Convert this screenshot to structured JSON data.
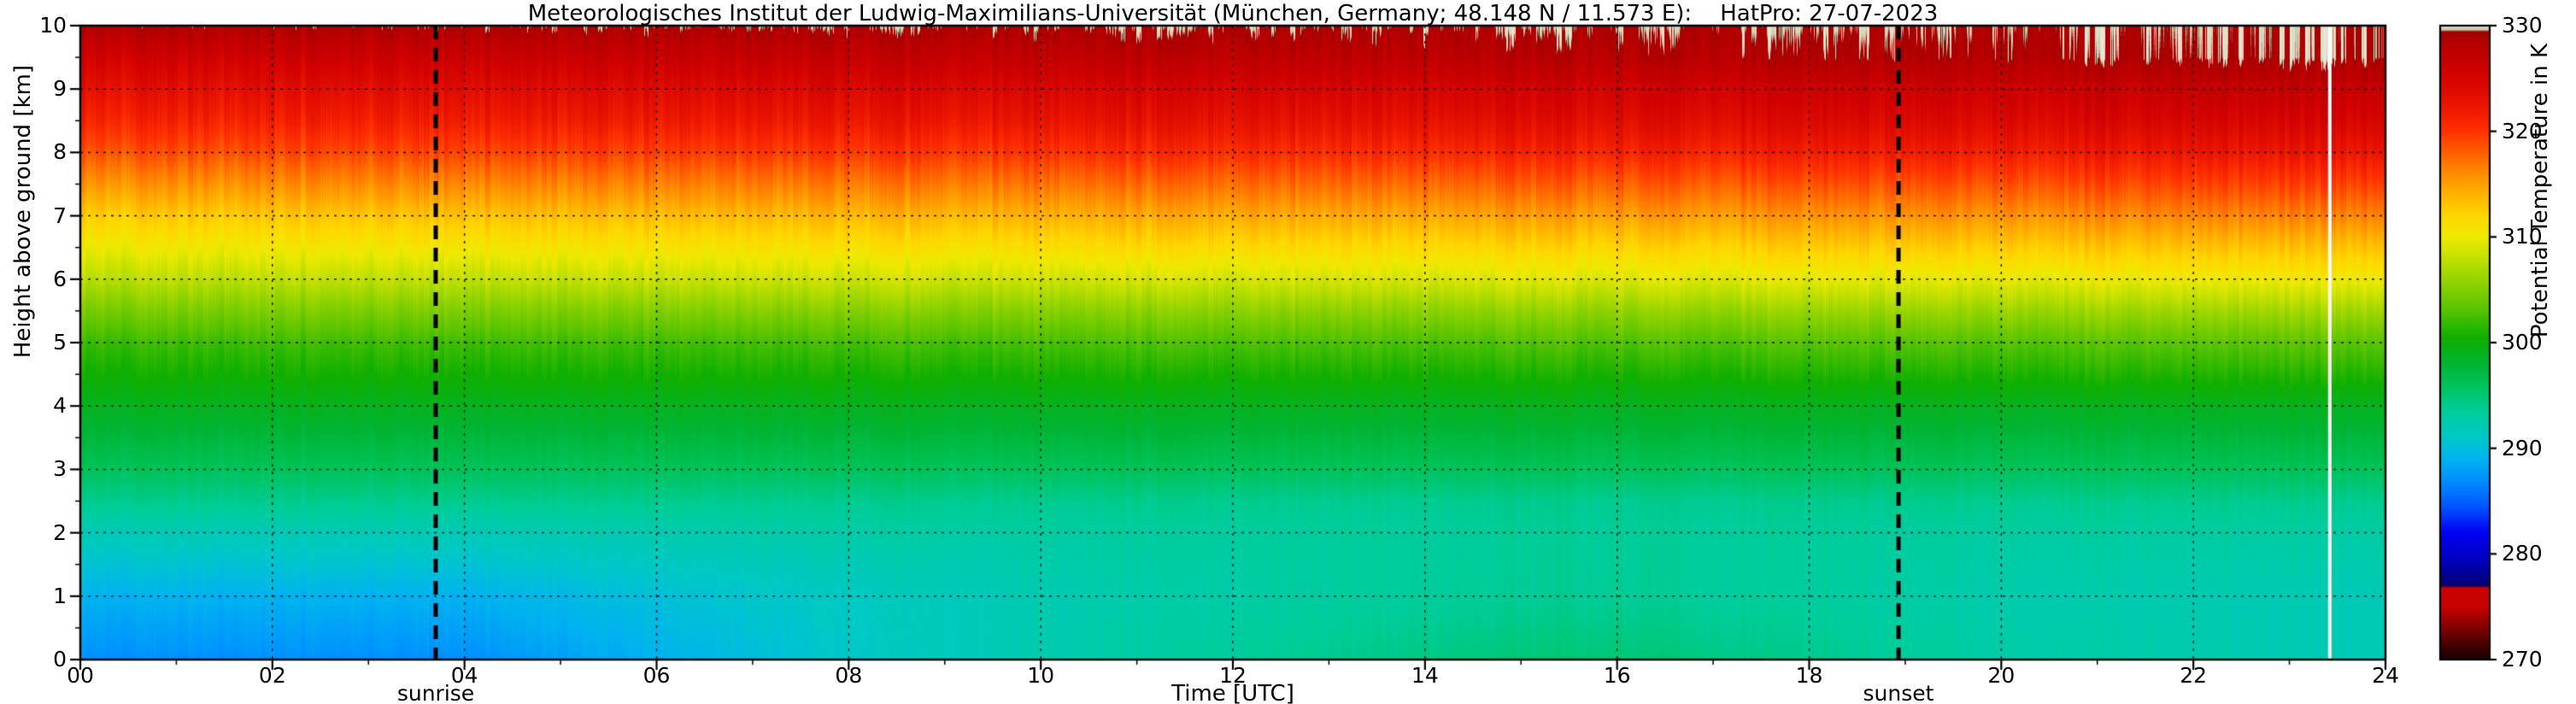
{
  "title": "Meteorologisches Institut der Ludwig-Maximilians-Universität (München, Germany; 48.148 N / 11.573 E):    HatPro: 27-07-2023",
  "x_axis": {
    "label": "Time [UTC]",
    "tick_labels": [
      "00",
      "02",
      "04",
      "06",
      "08",
      "10",
      "12",
      "14",
      "16",
      "18",
      "20",
      "22",
      "24"
    ],
    "tick_hours": [
      0,
      2,
      4,
      6,
      8,
      10,
      12,
      14,
      16,
      18,
      20,
      22,
      24
    ],
    "minor_tick_hours": [
      1,
      3,
      5,
      7,
      9,
      11,
      13,
      15,
      17,
      19,
      21,
      23
    ],
    "range": [
      0,
      24
    ]
  },
  "y_axis": {
    "label": "Height above ground [km]",
    "tick_labels": [
      "0",
      "1",
      "2",
      "3",
      "4",
      "5",
      "6",
      "7",
      "8",
      "9",
      "10"
    ],
    "tick_km": [
      0,
      1,
      2,
      3,
      4,
      5,
      6,
      7,
      8,
      9,
      10
    ],
    "range": [
      0,
      10
    ]
  },
  "colorbar": {
    "label": "Potential Temperature in K",
    "tick_labels": [
      "270",
      "280",
      "290",
      "300",
      "310",
      "320",
      "330"
    ],
    "tick_values": [
      270,
      280,
      290,
      300,
      310,
      320,
      330
    ],
    "range": [
      270,
      330
    ]
  },
  "annotations": {
    "sunrise": {
      "label": "sunrise",
      "time_utc": 3.7,
      "line_style": "dashed-black"
    },
    "sunset": {
      "label": "sunset",
      "time_utc": 18.93,
      "line_style": "dashed-black"
    },
    "time_marker": {
      "time_utc": 23.42,
      "color": "#ffffff"
    }
  },
  "chart_data": {
    "type": "heatmap",
    "title": "Meteorologisches Institut der Ludwig-Maximilians-Universität (München, Germany; 48.148 N / 11.573 E):    HatPro: 27-07-2023",
    "xlabel": "Time [UTC]",
    "ylabel": "Height above ground [km]",
    "value_label": "Potential Temperature in K",
    "unit": "K",
    "x_hours": [
      0,
      2,
      4,
      6,
      8,
      10,
      12,
      14,
      16,
      18,
      20,
      22,
      24
    ],
    "y_km": [
      0,
      0.5,
      1,
      1.5,
      2,
      2.5,
      3,
      3.5,
      4,
      4.5,
      5,
      5.5,
      6,
      6.5,
      7,
      7.5,
      8,
      8.5,
      9,
      9.5,
      10
    ],
    "orientation": "values[i] is the vertical profile at x_hours[i], ordered bottom-to-top along y_km",
    "value_range": [
      270,
      330
    ],
    "grid": "dashed-black",
    "legend_position": "right-colorbar",
    "values": [
      [
        287.0,
        288.0,
        289.0,
        290.5,
        292.0,
        294.0,
        296.0,
        297.5,
        299.0,
        300.5,
        302.0,
        304.5,
        307.5,
        310.0,
        312.5,
        315.5,
        318.5,
        321.0,
        323.0,
        325.5,
        328.5
      ],
      [
        287.0,
        288.0,
        289.0,
        290.5,
        292.0,
        294.0,
        296.0,
        297.5,
        299.0,
        300.6,
        302.1,
        304.7,
        307.7,
        310.3,
        312.8,
        315.8,
        318.8,
        321.3,
        323.3,
        325.8,
        328.7
      ],
      [
        287.0,
        288.0,
        289.0,
        290.5,
        292.0,
        294.0,
        296.0,
        297.5,
        299.0,
        300.6,
        302.2,
        304.8,
        307.9,
        310.6,
        313.2,
        316.2,
        319.2,
        321.7,
        323.7,
        326.2,
        328.9
      ],
      [
        289.0,
        289.6,
        290.2,
        291.3,
        292.4,
        294.0,
        296.0,
        297.5,
        299.0,
        300.7,
        302.3,
        305.0,
        308.2,
        310.8,
        313.5,
        316.5,
        319.5,
        322.0,
        324.0,
        326.5,
        329.1
      ],
      [
        291.0,
        291.2,
        291.4,
        292.1,
        292.8,
        294.0,
        296.0,
        297.5,
        299.0,
        300.7,
        302.4,
        305.2,
        308.4,
        311.1,
        313.8,
        316.8,
        319.8,
        322.3,
        324.3,
        326.8,
        329.2
      ],
      [
        292.5,
        292.4,
        292.3,
        292.7,
        293.1,
        294.0,
        296.0,
        297.5,
        299.0,
        300.8,
        302.6,
        305.3,
        308.6,
        311.4,
        314.2,
        317.2,
        320.2,
        322.7,
        324.7,
        327.2,
        329.3
      ],
      [
        293.5,
        293.2,
        292.9,
        293.1,
        293.3,
        294.0,
        296.0,
        297.5,
        299.0,
        300.8,
        302.7,
        305.5,
        308.8,
        311.7,
        314.5,
        317.5,
        320.5,
        323.0,
        325.0,
        327.5,
        329.4
      ],
      [
        294.5,
        294.0,
        293.5,
        293.5,
        293.5,
        294.0,
        296.0,
        297.5,
        299.0,
        300.9,
        302.8,
        305.7,
        309.1,
        311.9,
        314.8,
        317.8,
        320.8,
        323.3,
        325.3,
        327.8,
        329.4
      ],
      [
        295.0,
        294.4,
        293.8,
        293.7,
        293.6,
        294.0,
        296.0,
        297.5,
        299.0,
        300.9,
        302.9,
        305.8,
        309.3,
        312.2,
        315.2,
        318.2,
        321.2,
        323.7,
        325.7,
        328.2,
        329.4
      ],
      [
        294.0,
        293.6,
        293.2,
        293.3,
        293.4,
        294.0,
        296.0,
        297.5,
        299.0,
        301.0,
        303.0,
        306.0,
        309.5,
        312.5,
        315.5,
        318.5,
        321.5,
        324.0,
        326.0,
        328.5,
        329.4
      ],
      [
        293.0,
        292.8,
        292.6,
        292.9,
        293.2,
        294.0,
        296.0,
        297.5,
        299.0,
        301.1,
        303.1,
        306.2,
        309.7,
        312.8,
        315.8,
        318.8,
        321.8,
        324.3,
        326.3,
        328.8,
        329.4
      ],
      [
        292.5,
        292.4,
        292.3,
        292.7,
        293.1,
        294.0,
        296.0,
        297.5,
        299.0,
        301.1,
        303.2,
        306.3,
        309.9,
        313.1,
        316.2,
        319.2,
        322.2,
        324.7,
        326.7,
        329.2,
        329.4
      ],
      [
        292.0,
        292.0,
        292.0,
        292.5,
        293.0,
        294.0,
        296.0,
        297.5,
        299.0,
        301.2,
        303.3,
        306.5,
        310.2,
        313.3,
        316.5,
        319.5,
        322.5,
        325.0,
        327.0,
        329.4,
        329.4
      ]
    ],
    "colormap_stops": [
      [
        270.0,
        "#140000"
      ],
      [
        272.5,
        "#6e0000"
      ],
      [
        275.0,
        "#c80000"
      ],
      [
        276.8,
        "#c80000"
      ],
      [
        277.0,
        "#00006e"
      ],
      [
        279.0,
        "#0000b4"
      ],
      [
        282.0,
        "#0000f5"
      ],
      [
        284.5,
        "#0055ff"
      ],
      [
        287.0,
        "#0091ff"
      ],
      [
        289.0,
        "#00b3f0"
      ],
      [
        291.0,
        "#00c8c8"
      ],
      [
        293.5,
        "#00cd9b"
      ],
      [
        296.0,
        "#00c35a"
      ],
      [
        298.0,
        "#00b432"
      ],
      [
        300.5,
        "#0faf00"
      ],
      [
        303.0,
        "#55c300"
      ],
      [
        305.5,
        "#8cd200"
      ],
      [
        308.0,
        "#c3e100"
      ],
      [
        310.0,
        "#eeea00"
      ],
      [
        312.0,
        "#ffd700"
      ],
      [
        314.0,
        "#ffb400"
      ],
      [
        316.0,
        "#ff8c00"
      ],
      [
        318.0,
        "#ff5f00"
      ],
      [
        320.0,
        "#ff3200"
      ],
      [
        322.0,
        "#ee1900"
      ],
      [
        324.0,
        "#dc0a00"
      ],
      [
        326.0,
        "#cd0000"
      ],
      [
        328.0,
        "#b90000"
      ],
      [
        329.4,
        "#a50000"
      ],
      [
        329.6,
        "#c8c8aa"
      ],
      [
        330.0,
        "#e6e6d2"
      ]
    ]
  }
}
